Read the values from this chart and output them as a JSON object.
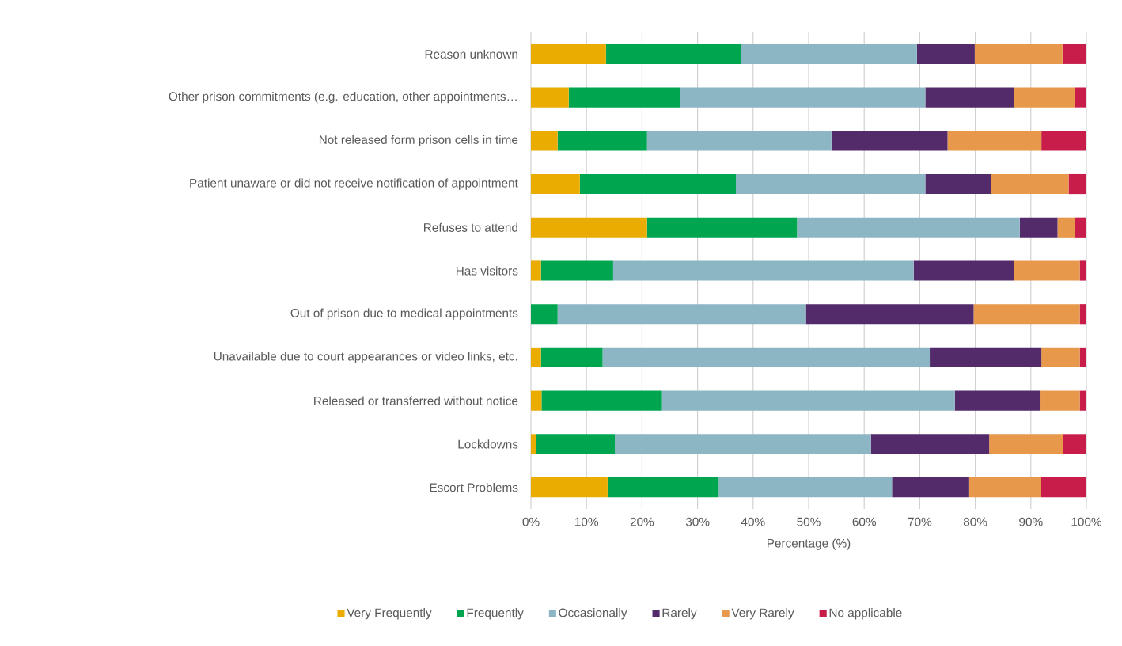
{
  "chart_data": {
    "type": "bar",
    "orientation": "horizontal",
    "stacked": true,
    "xlabel": "Percentage (%)",
    "categories": [
      "Reason unknown",
      "Other prison commitments (e.g. education, other appointments…",
      "Not released form prison cells in time",
      "Patient unaware or did not receive notification of appointment",
      "Refuses to attend",
      "Has visitors",
      "Out of prison due to medical appointments",
      "Unavailable due to court appearances or video links, etc.",
      "Released or transferred without notice",
      "Lockdowns",
      "Escort Problems"
    ],
    "series": [
      {
        "name": "Very Frequently",
        "color": "#eaac00",
        "values": [
          13.5,
          6.8,
          4.8,
          8.8,
          20.9,
          1.8,
          0,
          1.8,
          1.9,
          0.9,
          13.8
        ]
      },
      {
        "name": "Frequently",
        "color": "#00a550",
        "values": [
          24.3,
          20.0,
          16.1,
          28.1,
          27.0,
          13.0,
          4.8,
          11.1,
          21.7,
          14.2,
          20.0
        ]
      },
      {
        "name": "Occasionally",
        "color": "#8db6c5",
        "values": [
          31.7,
          44.2,
          33.2,
          34.1,
          40.1,
          54.1,
          44.7,
          58.9,
          52.7,
          46.1,
          31.2
        ]
      },
      {
        "name": "Rarely",
        "color": "#532b6b",
        "values": [
          10.4,
          15.9,
          20.9,
          11.9,
          6.8,
          18.0,
          30.2,
          20.1,
          15.3,
          21.3,
          13.9
        ]
      },
      {
        "name": "Very Rarely",
        "color": "#e8984b",
        "values": [
          15.8,
          11.0,
          16.9,
          13.9,
          3.1,
          11.9,
          19.1,
          6.9,
          7.2,
          13.3,
          12.9
        ]
      },
      {
        "name": "No applicable",
        "color": "#c81c4a",
        "values": [
          4.3,
          2.1,
          8.1,
          3.2,
          2.1,
          1.2,
          1.2,
          1.2,
          1.2,
          4.2,
          8.2
        ]
      }
    ],
    "xlim": [
      0,
      100
    ],
    "xticks": [
      {
        "value": 0,
        "label": "0%"
      },
      {
        "value": 10,
        "label": "10%"
      },
      {
        "value": 20,
        "label": "20%"
      },
      {
        "value": 30,
        "label": "30%"
      },
      {
        "value": 40,
        "label": "40%"
      },
      {
        "value": 50,
        "label": "50%"
      },
      {
        "value": 60,
        "label": "60%"
      },
      {
        "value": 70,
        "label": "70%"
      },
      {
        "value": 80,
        "label": "80%"
      },
      {
        "value": 90,
        "label": "90%"
      },
      {
        "value": 100,
        "label": "100%"
      }
    ],
    "grid": "x",
    "legend": "bottom"
  }
}
